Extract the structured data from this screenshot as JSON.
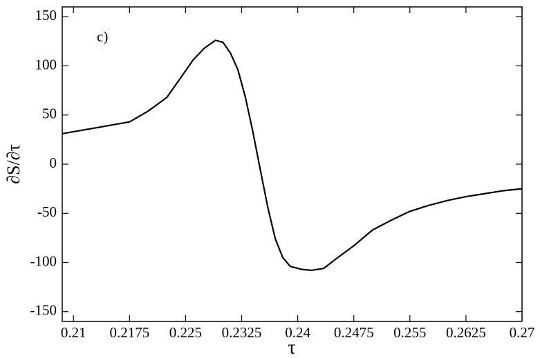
{
  "chart_data": {
    "type": "line",
    "annotation": "c)",
    "x_label": "τ",
    "y_label": "∂S/∂τ",
    "xlim": [
      0.2085,
      0.27
    ],
    "ylim": [
      -160,
      160
    ],
    "xticks": [
      0.21,
      0.2175,
      0.225,
      0.2325,
      0.24,
      0.2475,
      0.255,
      0.2625,
      0.27
    ],
    "yticks": [
      -150,
      -100,
      -50,
      0,
      50,
      100,
      150
    ],
    "grid": false,
    "series": [
      {
        "color": "#000000",
        "x": [
          0.2085,
          0.21,
          0.2175,
          0.22,
          0.2225,
          0.225,
          0.226,
          0.2275,
          0.229,
          0.23,
          0.231,
          0.232,
          0.233,
          0.234,
          0.235,
          0.236,
          0.237,
          0.238,
          0.239,
          0.2405,
          0.2418,
          0.2435,
          0.245,
          0.2475,
          0.25,
          0.2525,
          0.255,
          0.2575,
          0.26,
          0.2625,
          0.265,
          0.2675,
          0.27
        ],
        "values": [
          31,
          33,
          43,
          54,
          68,
          95,
          106,
          118,
          126,
          124,
          113,
          96,
          68,
          33,
          -6,
          -44,
          -76,
          -95,
          -104,
          -107,
          -108,
          -106,
          -97,
          -83,
          -67,
          -57,
          -48,
          -42,
          -37,
          -33,
          -30,
          -27,
          -25
        ]
      }
    ]
  }
}
